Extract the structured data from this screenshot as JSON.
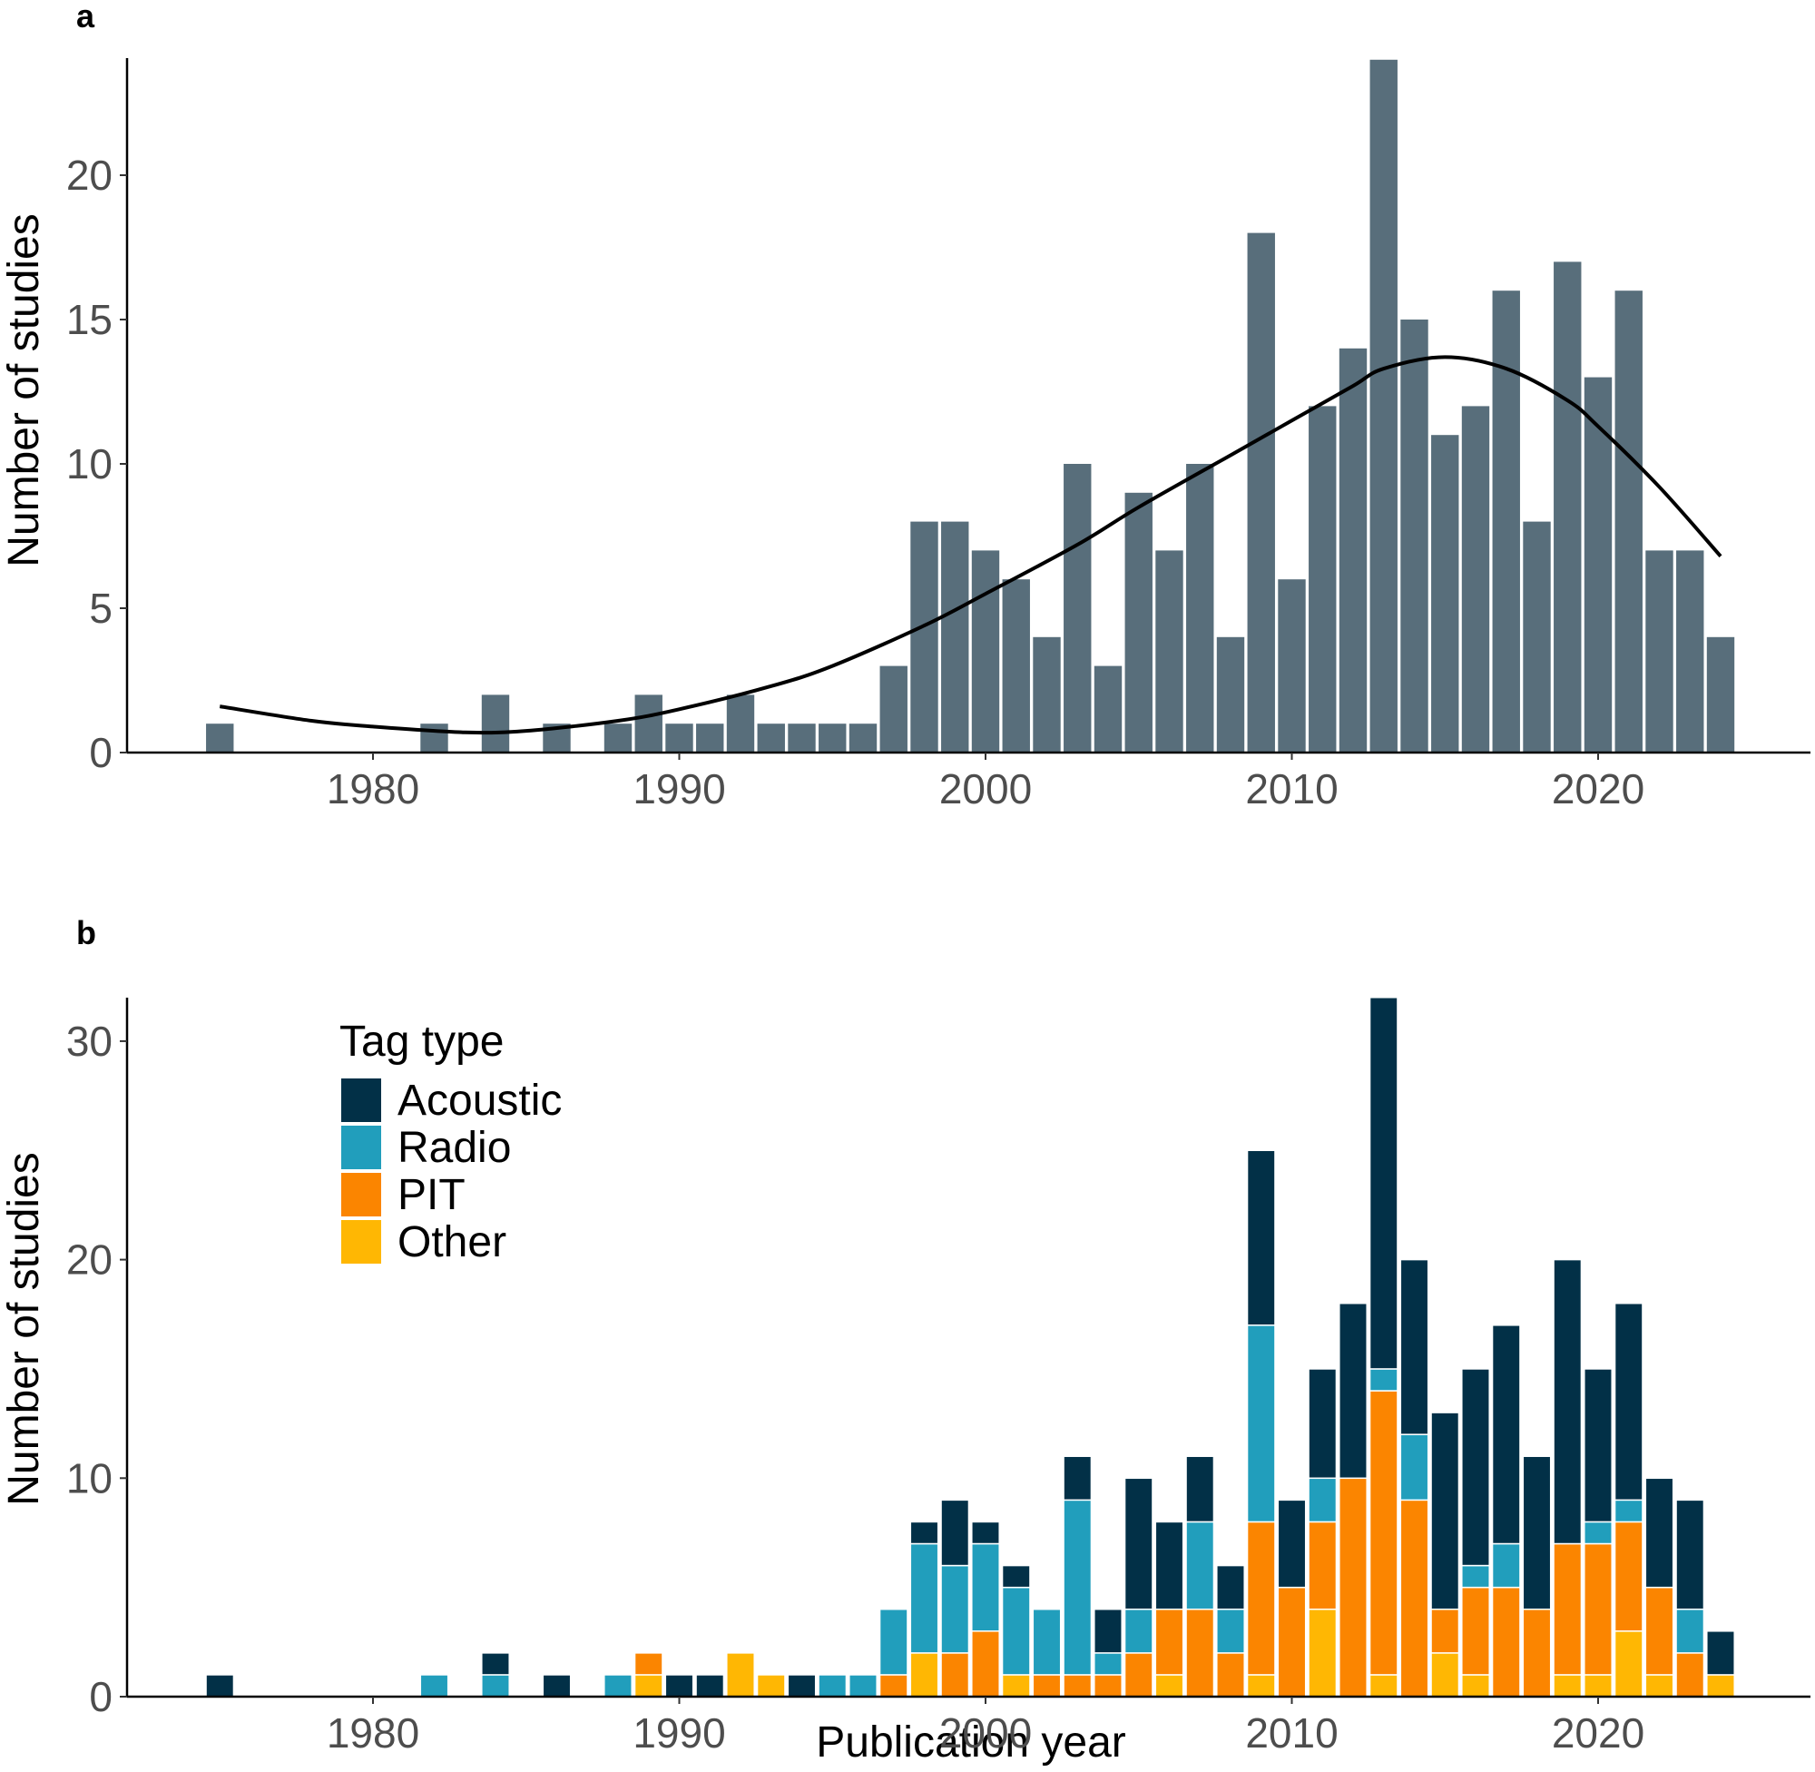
{
  "chart_data": [
    {
      "panel": "a",
      "type": "bar",
      "title": "",
      "xlabel": "",
      "ylabel": "Number of studies",
      "xlim": [
        1972,
        2027
      ],
      "ylim": [
        0,
        24
      ],
      "xticks": [
        1980,
        1990,
        2000,
        2010,
        2020
      ],
      "yticks": [
        0,
        5,
        10,
        15,
        20
      ],
      "bar_color": "#586e7b",
      "x": [
        1975,
        1982,
        1984,
        1986,
        1988,
        1989,
        1990,
        1991,
        1992,
        1993,
        1994,
        1995,
        1996,
        1997,
        1998,
        1999,
        2000,
        2001,
        2002,
        2003,
        2004,
        2005,
        2006,
        2007,
        2008,
        2009,
        2010,
        2011,
        2012,
        2013,
        2014,
        2015,
        2016,
        2017,
        2018,
        2019,
        2020,
        2021,
        2022,
        2023,
        2024
      ],
      "values": [
        1,
        1,
        2,
        1,
        1,
        2,
        1,
        1,
        2,
        1,
        1,
        1,
        1,
        3,
        8,
        8,
        7,
        6,
        4,
        10,
        3,
        9,
        7,
        10,
        4,
        18,
        6,
        12,
        14,
        24,
        15,
        11,
        12,
        16,
        8,
        17,
        13,
        16,
        7,
        7,
        4
      ],
      "trend_line": {
        "type": "line",
        "color": "#000000",
        "x": [
          1975,
          1978,
          1980,
          1983,
          1985,
          1988,
          1990,
          1993,
          1995,
          1998,
          2000,
          2003,
          2005,
          2008,
          2010,
          2012,
          2013,
          2015,
          2017,
          2019,
          2020,
          2022,
          2024
        ],
        "y": [
          1.6,
          1.1,
          0.9,
          0.7,
          0.75,
          1.1,
          1.5,
          2.3,
          3.0,
          4.4,
          5.5,
          7.2,
          8.5,
          10.3,
          11.5,
          12.7,
          13.3,
          13.7,
          13.3,
          12.2,
          11.3,
          9.2,
          6.8
        ]
      }
    },
    {
      "panel": "b",
      "type": "bar",
      "stacked": true,
      "title": "",
      "xlabel": "Publication year",
      "ylabel": "Number of studies",
      "xlim": [
        1972,
        2027
      ],
      "ylim": [
        0,
        32
      ],
      "xticks": [
        1980,
        1990,
        2000,
        2010,
        2020
      ],
      "yticks": [
        0,
        10,
        20,
        30
      ],
      "legend": {
        "title": "Tag type",
        "position": "top-left"
      },
      "x": [
        1975,
        1982,
        1984,
        1986,
        1988,
        1989,
        1990,
        1991,
        1992,
        1993,
        1994,
        1995,
        1996,
        1997,
        1998,
        1999,
        2000,
        2001,
        2002,
        2003,
        2004,
        2005,
        2006,
        2007,
        2008,
        2009,
        2010,
        2011,
        2012,
        2013,
        2014,
        2015,
        2016,
        2017,
        2018,
        2019,
        2020,
        2021,
        2022,
        2023,
        2024
      ],
      "series": [
        {
          "name": "Other",
          "color": "#ffb703",
          "values": [
            0,
            0,
            0,
            0,
            0,
            1,
            0,
            0,
            2,
            1,
            0,
            0,
            0,
            0,
            2,
            0,
            0,
            1,
            0,
            0,
            0,
            0,
            1,
            0,
            0,
            1,
            0,
            4,
            0,
            1,
            0,
            2,
            1,
            0,
            0,
            1,
            1,
            3,
            1,
            0,
            1
          ]
        },
        {
          "name": "PIT",
          "color": "#fb8500",
          "values": [
            0,
            0,
            0,
            0,
            0,
            1,
            0,
            0,
            0,
            0,
            0,
            0,
            0,
            1,
            0,
            2,
            3,
            0,
            1,
            1,
            1,
            2,
            3,
            4,
            2,
            7,
            5,
            4,
            10,
            13,
            9,
            2,
            4,
            5,
            4,
            6,
            6,
            5,
            4,
            2,
            0
          ]
        },
        {
          "name": "Radio",
          "color": "#219ebc",
          "values": [
            0,
            1,
            1,
            0,
            1,
            0,
            0,
            0,
            0,
            0,
            0,
            1,
            1,
            3,
            5,
            4,
            4,
            4,
            3,
            8,
            1,
            2,
            0,
            4,
            2,
            9,
            0,
            2,
            0,
            1,
            3,
            0,
            1,
            2,
            0,
            0,
            1,
            1,
            0,
            2,
            0
          ]
        },
        {
          "name": "Acoustic",
          "color": "#023047",
          "values": [
            1,
            0,
            1,
            1,
            0,
            0,
            1,
            1,
            0,
            0,
            1,
            0,
            0,
            0,
            1,
            3,
            1,
            1,
            0,
            2,
            2,
            6,
            4,
            3,
            2,
            8,
            4,
            5,
            8,
            17,
            8,
            9,
            9,
            10,
            7,
            13,
            7,
            9,
            5,
            5,
            2
          ]
        }
      ],
      "legend_order": [
        "Acoustic",
        "Radio",
        "PIT",
        "Other"
      ]
    }
  ],
  "panels": {
    "a": {
      "label": "a",
      "ylabel": "Number of studies"
    },
    "b": {
      "label": "b",
      "ylabel": "Number of studies",
      "xlabel": "Publication year",
      "legend_title": "Tag type"
    }
  }
}
